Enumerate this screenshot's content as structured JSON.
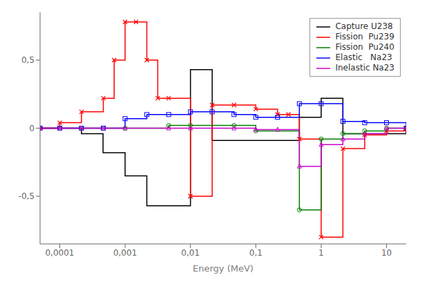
{
  "chart_data": {
    "type": "line",
    "line_style": "step",
    "x_label": "Energy (MeV)",
    "log": "x",
    "xlim": [
      5e-05,
      20
    ],
    "ylim": [
      -0.85,
      0.85
    ],
    "xticks": [
      {
        "value": 0.0001,
        "label": "0,0001"
      },
      {
        "value": 0.001,
        "label": "0,001"
      },
      {
        "value": 0.01,
        "label": "0,01"
      },
      {
        "value": 0.1,
        "label": "0,1"
      },
      1,
      10
    ],
    "yticks": [
      {
        "value": -0.5,
        "label": "-0,5"
      },
      0,
      {
        "value": 0.5,
        "label": "0,5"
      }
    ],
    "grid": false,
    "legend": "upper right",
    "series": [
      {
        "name": "Capture U238",
        "color": "#000000",
        "marker": "none",
        "x": [
          5e-05,
          0.0001,
          0.000215,
          0.00046,
          0.001,
          0.00215,
          0.00464,
          0.01,
          0.0215,
          0.0464,
          0.1,
          0.215,
          0.464,
          1.0,
          2.15,
          4.64,
          10.0,
          20.0
        ],
        "values": [
          0.0,
          0.0,
          -0.04,
          -0.18,
          -0.35,
          -0.57,
          -0.57,
          0.43,
          -0.09,
          -0.09,
          -0.09,
          -0.09,
          0.08,
          0.22,
          -0.04,
          -0.04,
          -0.04,
          0.0
        ]
      },
      {
        "name": "Fission  Pu239",
        "color": "#ff0000",
        "marker": "x",
        "x": [
          5e-05,
          0.0001,
          0.000215,
          0.000464,
          0.00068,
          0.001,
          0.00147,
          0.00215,
          0.00316,
          0.00464,
          0.01,
          0.0215,
          0.0464,
          0.1,
          0.215,
          0.316,
          0.464,
          1.0,
          2.15,
          4.64,
          10.0,
          20.0
        ],
        "values": [
          0.0,
          0.04,
          0.12,
          0.22,
          0.5,
          0.78,
          0.78,
          0.5,
          0.22,
          0.22,
          -0.5,
          0.17,
          0.17,
          0.14,
          0.1,
          0.1,
          -0.08,
          -0.8,
          -0.15,
          -0.05,
          -0.02,
          0.0
        ]
      },
      {
        "name": "Fission  Pu240",
        "color": "#008000",
        "marker": "circle",
        "x": [
          5e-05,
          0.0001,
          0.000215,
          0.000464,
          0.001,
          0.00464,
          0.01,
          0.0464,
          0.1,
          0.464,
          1.0,
          2.15,
          4.64,
          10.0,
          20.0
        ],
        "values": [
          0.0,
          0.0,
          0.0,
          0.0,
          0.0,
          0.02,
          0.02,
          0.02,
          -0.02,
          -0.6,
          -0.08,
          -0.04,
          -0.02,
          0.0,
          0.0
        ]
      },
      {
        "name": "Elastic   Na23",
        "color": "#0000ff",
        "marker": "square",
        "x": [
          5e-05,
          0.0001,
          0.000215,
          0.000464,
          0.001,
          0.00215,
          0.00464,
          0.01,
          0.0215,
          0.0464,
          0.1,
          0.215,
          0.464,
          1.0,
          2.15,
          4.64,
          10.0,
          20.0
        ],
        "values": [
          0.0,
          0.0,
          0.0,
          0.0,
          0.07,
          0.1,
          0.1,
          0.12,
          0.12,
          0.1,
          0.08,
          0.08,
          0.18,
          0.18,
          0.05,
          0.04,
          0.04,
          0.0
        ]
      },
      {
        "name": "Inelastic Na23",
        "color": "#cc00cc",
        "marker": "triangle",
        "x": [
          5e-05,
          0.0001,
          0.000215,
          0.000464,
          0.001,
          0.00464,
          0.01,
          0.0464,
          0.1,
          0.215,
          0.464,
          1.0,
          2.15,
          4.64,
          10.0,
          20.0
        ],
        "values": [
          0.0,
          0.0,
          0.0,
          0.0,
          0.0,
          0.0,
          0.0,
          0.0,
          -0.01,
          -0.01,
          -0.28,
          -0.12,
          -0.08,
          -0.04,
          0.0,
          0.0
        ]
      }
    ]
  }
}
